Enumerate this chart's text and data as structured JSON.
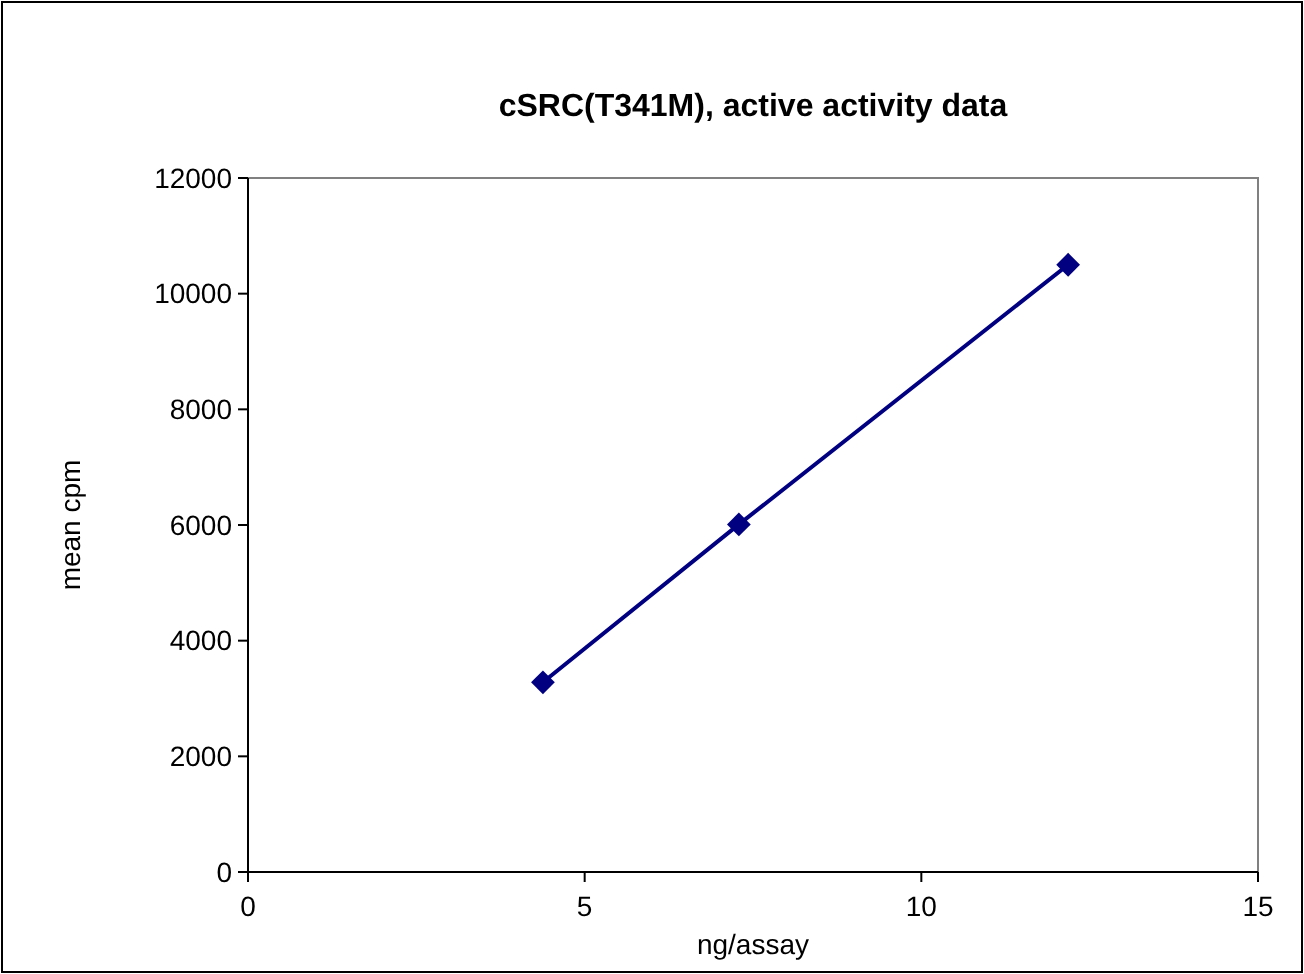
{
  "chart_data": {
    "type": "line",
    "title": "cSRC(T341M), active activity data",
    "xlabel": "ng/assay",
    "ylabel": "mean cpm",
    "x": [
      4.38,
      7.29,
      12.18
    ],
    "series": [
      {
        "color": "#000080",
        "values": [
          3280,
          6010,
          10500
        ]
      }
    ],
    "xlim": [
      0,
      15
    ],
    "xticks": [
      0,
      5,
      10,
      15
    ],
    "ylim": [
      0,
      12000
    ],
    "yticks": [
      0,
      2000,
      4000,
      6000,
      8000,
      10000,
      12000
    ],
    "marker": "diamond",
    "grid": false
  }
}
